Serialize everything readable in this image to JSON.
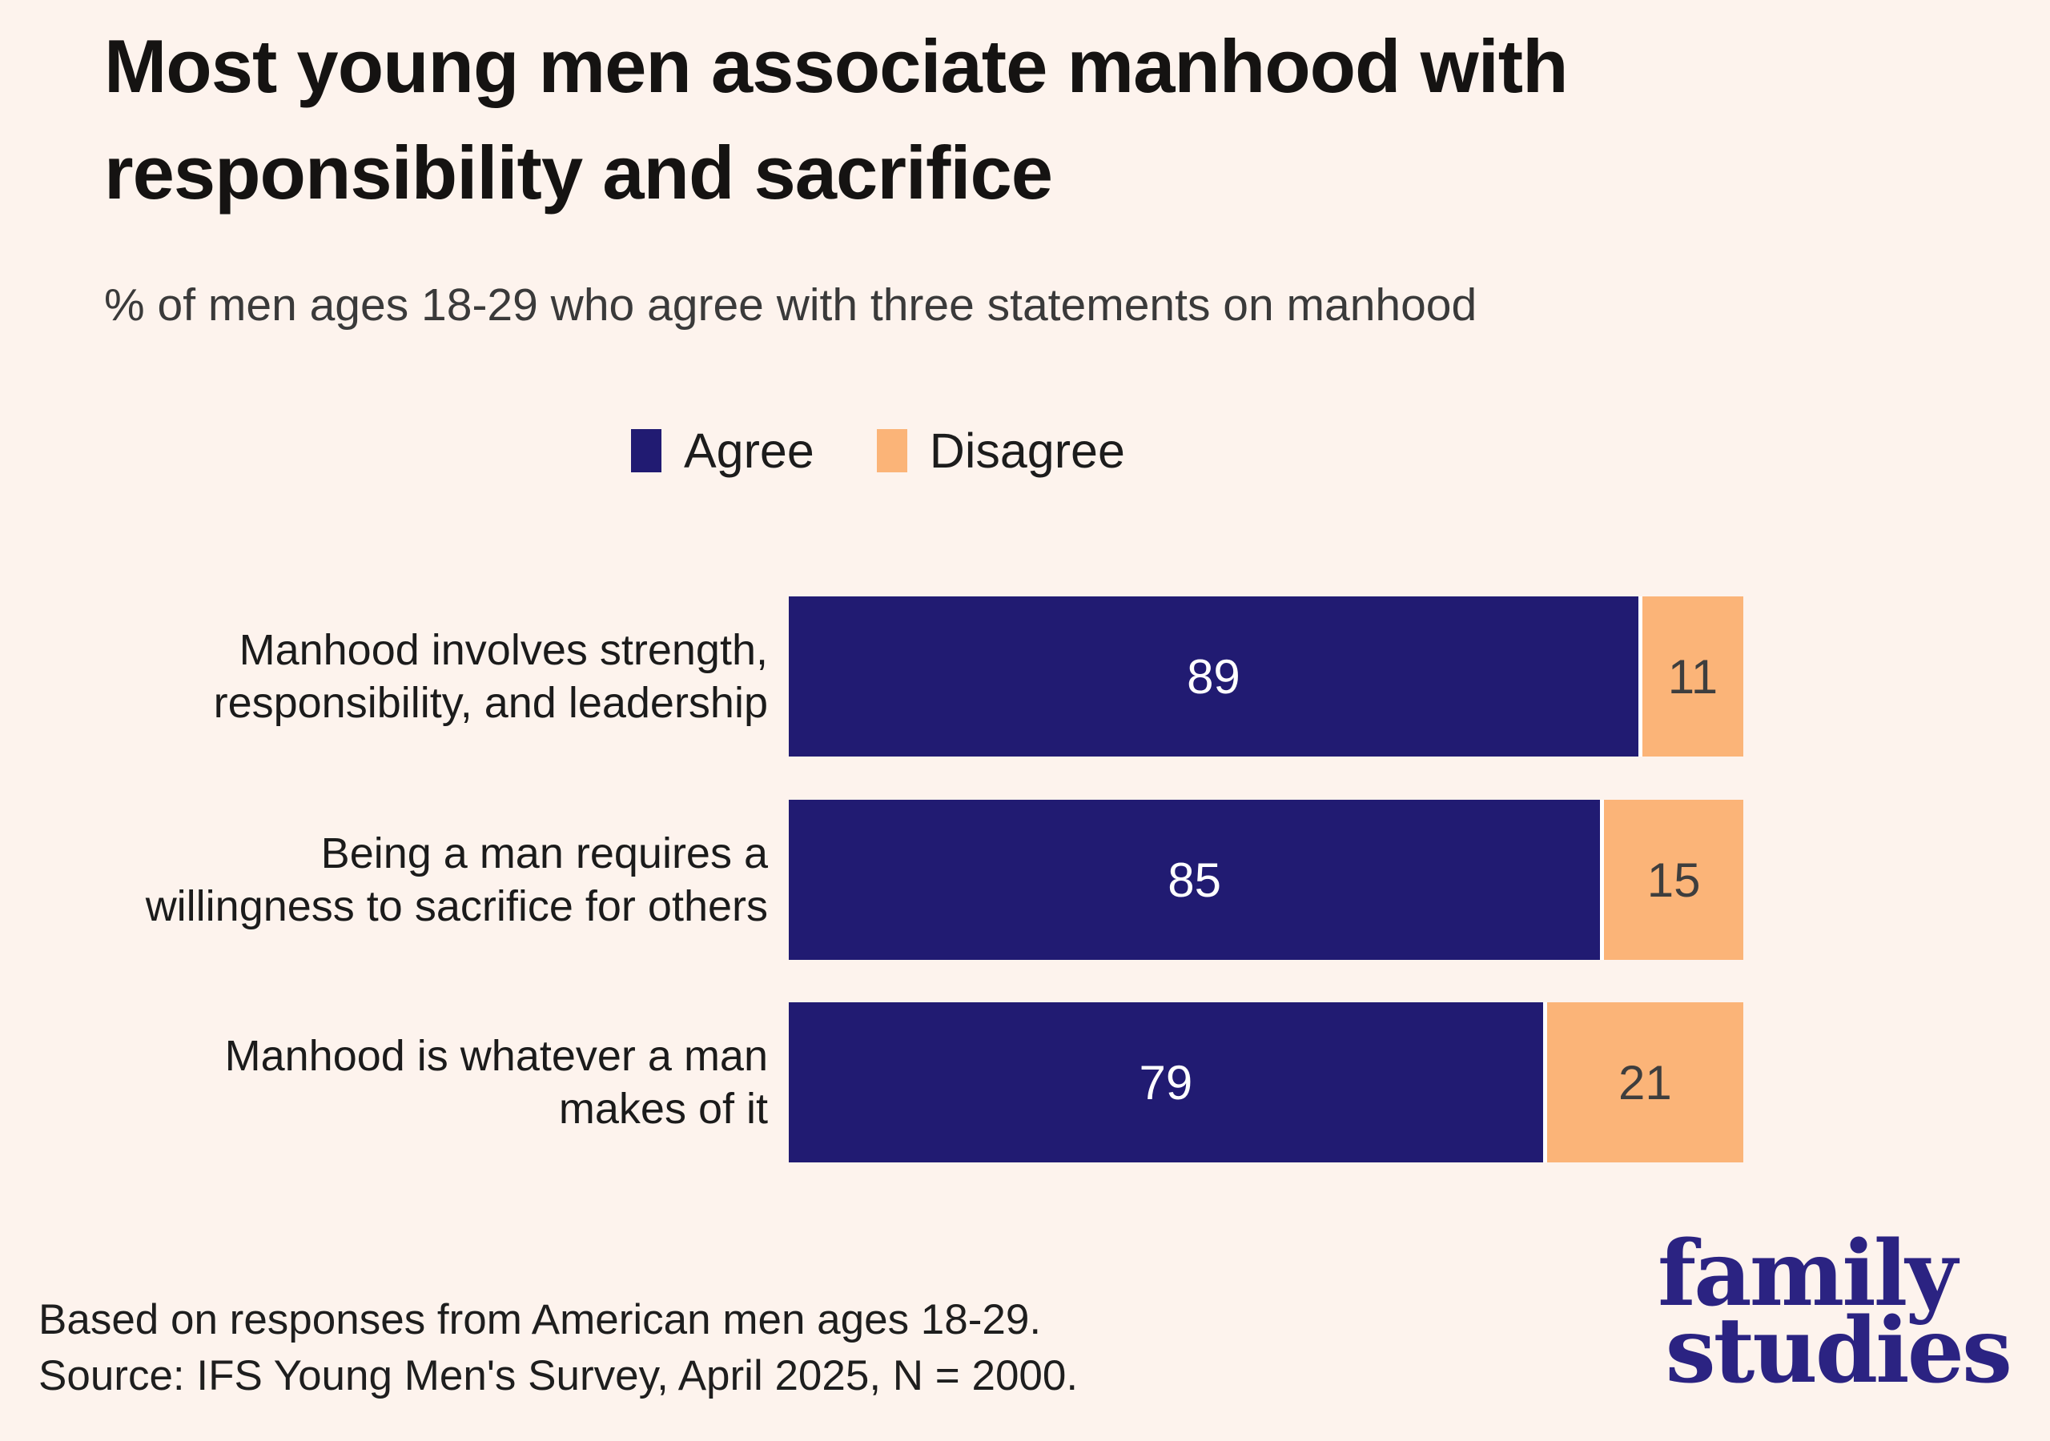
{
  "title": "Most young men associate manhood with responsibility and sacrifice",
  "subtitle": "% of men ages 18-29 who agree with three statements on manhood",
  "legend": {
    "agree_label": "Agree",
    "disagree_label": "Disagree"
  },
  "colors": {
    "background": "#FDF3ED",
    "agree": "#211B72",
    "disagree": "#FBB478",
    "divider": "#FFFFFF",
    "value_text_on_agree": "#FFFFFF",
    "value_text_on_disagree": "#3E3E3E",
    "logo": "#2B2382"
  },
  "chart_data": {
    "type": "bar",
    "orientation": "horizontal",
    "stacked": true,
    "grid": false,
    "legend_position": "top",
    "value_range": [
      0,
      100
    ],
    "title": "Most young men associate manhood with responsibility and sacrifice",
    "subtitle": "% of men ages 18-29 who agree with three statements on manhood",
    "categories": [
      "Manhood involves strength, responsibility, and leadership",
      "Being a man requires a willingness to sacrifice for others",
      "Manhood is whatever a man makes of it"
    ],
    "series": [
      {
        "name": "Agree",
        "values": [
          89,
          85,
          79
        ]
      },
      {
        "name": "Disagree",
        "values": [
          11,
          15,
          21
        ]
      }
    ]
  },
  "footer": {
    "line1": "Based on responses from American men ages 18-29.",
    "line2": "Source: IFS Young Men's Survey, April 2025, N = 2000."
  },
  "logo": {
    "line1": "family",
    "line2": "studies"
  }
}
